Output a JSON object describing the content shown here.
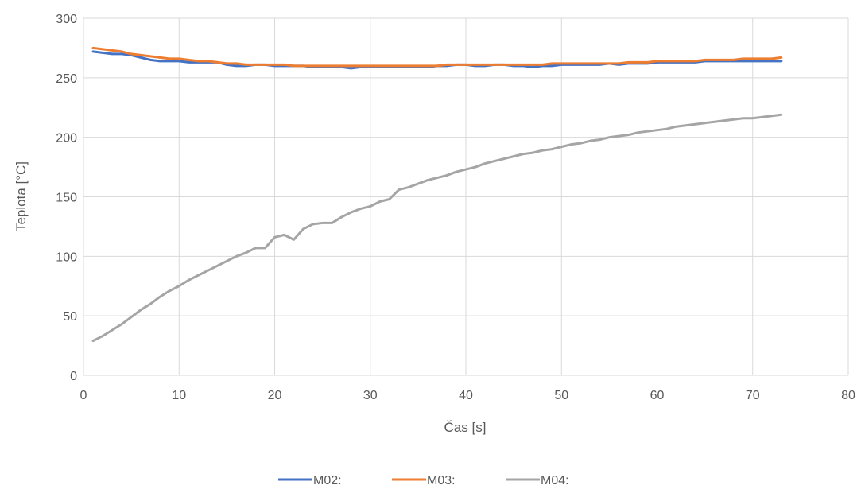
{
  "chart_data": {
    "type": "line",
    "title": "",
    "xlabel": "Čas [s]",
    "ylabel": "Teplota [°C]",
    "xlim": [
      0,
      80
    ],
    "ylim": [
      0,
      300
    ],
    "xticks": [
      0,
      10,
      20,
      30,
      40,
      50,
      60,
      70,
      80
    ],
    "yticks": [
      0,
      50,
      100,
      150,
      200,
      250,
      300
    ],
    "grid": true,
    "legend_position": "bottom",
    "x": [
      1,
      2,
      3,
      4,
      5,
      6,
      7,
      8,
      9,
      10,
      11,
      12,
      13,
      14,
      15,
      16,
      17,
      18,
      19,
      20,
      21,
      22,
      23,
      24,
      25,
      26,
      27,
      28,
      29,
      30,
      31,
      32,
      33,
      34,
      35,
      36,
      37,
      38,
      39,
      40,
      41,
      42,
      43,
      44,
      45,
      46,
      47,
      48,
      49,
      50,
      51,
      52,
      53,
      54,
      55,
      56,
      57,
      58,
      59,
      60,
      61,
      62,
      63,
      64,
      65,
      66,
      67,
      68,
      69,
      70,
      71,
      72,
      73
    ],
    "series": [
      {
        "name": "M02:",
        "color": "#4472C4",
        "values": [
          272,
          271,
          270,
          270,
          269,
          267,
          265,
          264,
          264,
          264,
          263,
          263,
          263,
          263,
          261,
          260,
          260,
          261,
          261,
          260,
          260,
          260,
          260,
          259,
          259,
          259,
          259,
          258,
          259,
          259,
          259,
          259,
          259,
          259,
          259,
          259,
          260,
          260,
          261,
          261,
          260,
          260,
          261,
          261,
          260,
          260,
          259,
          260,
          260,
          261,
          261,
          261,
          261,
          261,
          262,
          261,
          262,
          262,
          262,
          263,
          263,
          263,
          263,
          263,
          264,
          264,
          264,
          264,
          264,
          264,
          264,
          264,
          264
        ]
      },
      {
        "name": "M03:",
        "color": "#ED7D31",
        "values": [
          275,
          274,
          273,
          272,
          270,
          269,
          268,
          267,
          266,
          266,
          265,
          264,
          264,
          263,
          262,
          262,
          261,
          261,
          261,
          261,
          261,
          260,
          260,
          260,
          260,
          260,
          260,
          260,
          260,
          260,
          260,
          260,
          260,
          260,
          260,
          260,
          260,
          261,
          261,
          261,
          261,
          261,
          261,
          261,
          261,
          261,
          261,
          261,
          262,
          262,
          262,
          262,
          262,
          262,
          262,
          262,
          263,
          263,
          263,
          264,
          264,
          264,
          264,
          264,
          265,
          265,
          265,
          265,
          266,
          266,
          266,
          266,
          267
        ]
      },
      {
        "name": "M04:",
        "color": "#A5A5A5",
        "values": [
          29,
          33,
          38,
          43,
          49,
          55,
          60,
          66,
          71,
          75,
          80,
          84,
          88,
          92,
          96,
          100,
          103,
          107,
          107,
          116,
          118,
          114,
          123,
          127,
          128,
          128,
          133,
          137,
          140,
          142,
          146,
          148,
          156,
          158,
          161,
          164,
          166,
          168,
          171,
          173,
          175,
          178,
          180,
          182,
          184,
          186,
          187,
          189,
          190,
          192,
          194,
          195,
          197,
          198,
          200,
          201,
          202,
          204,
          205,
          206,
          207,
          209,
          210,
          211,
          212,
          213,
          214,
          215,
          216,
          216,
          217,
          218,
          219
        ]
      }
    ]
  }
}
